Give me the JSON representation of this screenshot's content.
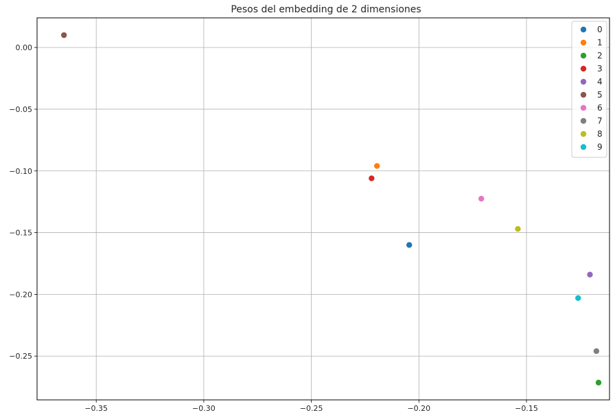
{
  "chart_data": {
    "type": "scatter",
    "title": "Pesos del embedding de 2 dimensiones",
    "xlabel": "",
    "ylabel": "",
    "xlim": [
      -0.3775,
      -0.1114
    ],
    "ylim": [
      -0.2855,
      0.024
    ],
    "xticks": [
      -0.35,
      -0.3,
      -0.25,
      -0.2,
      -0.15
    ],
    "xtick_labels": [
      "−0.35",
      "−0.30",
      "−0.25",
      "−0.20",
      "−0.15"
    ],
    "yticks": [
      0.0,
      -0.05,
      -0.1,
      -0.15,
      -0.2,
      -0.25
    ],
    "ytick_labels": [
      "0.00",
      "−0.05",
      "−0.10",
      "−0.15",
      "−0.20",
      "−0.25"
    ],
    "grid": true,
    "legend_position": "top-right",
    "series": [
      {
        "name": "0",
        "color": "#1f77b4",
        "x": [
          -0.2045
        ],
        "y": [
          -0.16
        ]
      },
      {
        "name": "1",
        "color": "#ff7f0e",
        "x": [
          -0.2195
        ],
        "y": [
          -0.096
        ]
      },
      {
        "name": "2",
        "color": "#2ca02c",
        "x": [
          -0.1165
        ],
        "y": [
          -0.2715
        ]
      },
      {
        "name": "3",
        "color": "#d62728",
        "x": [
          -0.222
        ],
        "y": [
          -0.106
        ]
      },
      {
        "name": "4",
        "color": "#9467bd",
        "x": [
          -0.1205
        ],
        "y": [
          -0.184
        ]
      },
      {
        "name": "5",
        "color": "#8c564b",
        "x": [
          -0.365
        ],
        "y": [
          0.01
        ]
      },
      {
        "name": "6",
        "color": "#e377c2",
        "x": [
          -0.171
        ],
        "y": [
          -0.1225
        ]
      },
      {
        "name": "7",
        "color": "#7f7f7f",
        "x": [
          -0.1175
        ],
        "y": [
          -0.246
        ]
      },
      {
        "name": "8",
        "color": "#bcbd22",
        "x": [
          -0.154
        ],
        "y": [
          -0.147
        ]
      },
      {
        "name": "9",
        "color": "#17becf",
        "x": [
          -0.126
        ],
        "y": [
          -0.203
        ]
      }
    ]
  }
}
